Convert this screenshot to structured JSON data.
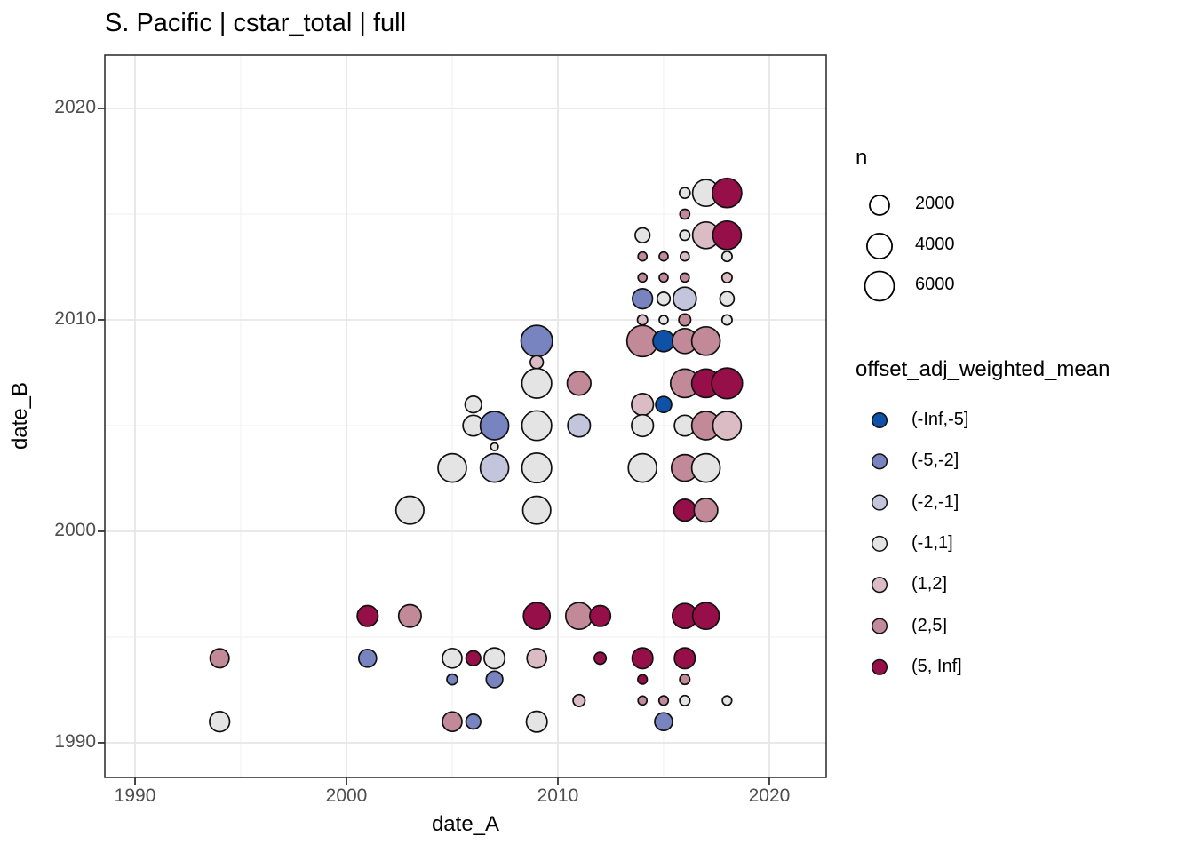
{
  "title": "S. Pacific | cstar_total | full",
  "style": {
    "background": "#ffffff",
    "grid_major": "#e6e6e6",
    "grid_minor": "#f2f2f2",
    "panel_border": "#333333",
    "tick_color": "#333333",
    "tick_label_color": "#4d4d4d",
    "point_stroke": "#111111"
  },
  "legends": {
    "size": {
      "title": "n",
      "items": [
        {
          "label": "2000",
          "n": 2000
        },
        {
          "label": "4000",
          "n": 4000
        },
        {
          "label": "6000",
          "n": 6000
        }
      ]
    },
    "color": {
      "title": "offset_adj_weighted_mean"
    }
  },
  "chart_data": {
    "type": "scatter",
    "title": "S. Pacific | cstar_total | full",
    "xlabel": "date_A",
    "ylabel": "date_B",
    "x_ticks": [
      "1990",
      "2000",
      "2010",
      "2020"
    ],
    "y_ticks": [
      "1990",
      "2000",
      "2010",
      "2020"
    ],
    "x_tick_values": [
      1990,
      2000,
      2010,
      2020
    ],
    "y_tick_values": [
      1990,
      2000,
      2010,
      2020
    ],
    "x_minor": [
      1995,
      2005,
      2015
    ],
    "y_minor": [
      1995,
      2005,
      2015
    ],
    "xlim": [
      1988.57,
      2022.69
    ],
    "ylim": [
      1988.36,
      2022.52
    ],
    "grid": true,
    "legend_position": "right",
    "size_scale": {
      "breaks": [
        2000,
        4000,
        6000
      ],
      "radius_px": [
        11,
        13.8,
        16.5
      ]
    },
    "color_bins": [
      {
        "label": "(-Inf,-5]",
        "color": "#1051a8"
      },
      {
        "label": "(-5,-2]",
        "color": "#7884bf"
      },
      {
        "label": "(-2,-1]",
        "color": "#c3c5dc"
      },
      {
        "label": "(-1,1]",
        "color": "#e5e4e5"
      },
      {
        "label": "(1,2]",
        "color": "#dcbcc4"
      },
      {
        "label": "(2,5]",
        "color": "#c28a98"
      },
      {
        "label": "(5, Inf]",
        "color": "#970f48"
      }
    ],
    "points": [
      {
        "a": 2016,
        "b": 2016,
        "n": 220,
        "bin": "(-1,1]"
      },
      {
        "a": 2017,
        "b": 2016,
        "n": 4700,
        "bin": "(-1,1]"
      },
      {
        "a": 2018,
        "b": 2016,
        "n": 6000,
        "bin": "(5, Inf]"
      },
      {
        "a": 2016,
        "b": 2015,
        "n": 140,
        "bin": "(2,5]"
      },
      {
        "a": 2014,
        "b": 2014,
        "n": 820,
        "bin": "(-1,1]"
      },
      {
        "a": 2016,
        "b": 2014,
        "n": 170,
        "bin": "(-1,1]"
      },
      {
        "a": 2017,
        "b": 2014,
        "n": 4700,
        "bin": "(1,2]"
      },
      {
        "a": 2018,
        "b": 2014,
        "n": 5540,
        "bin": "(5, Inf]"
      },
      {
        "a": 2014,
        "b": 2013,
        "n": 80,
        "bin": "(2,5]"
      },
      {
        "a": 2015,
        "b": 2013,
        "n": 80,
        "bin": "(2,5]"
      },
      {
        "a": 2016,
        "b": 2013,
        "n": 80,
        "bin": "(1,2]"
      },
      {
        "a": 2018,
        "b": 2013,
        "n": 170,
        "bin": "(-1,1]"
      },
      {
        "a": 2014,
        "b": 2012,
        "n": 80,
        "bin": "(2,5]"
      },
      {
        "a": 2015,
        "b": 2012,
        "n": 80,
        "bin": "(2,5]"
      },
      {
        "a": 2016,
        "b": 2012,
        "n": 80,
        "bin": "(2,5]"
      },
      {
        "a": 2018,
        "b": 2012,
        "n": 170,
        "bin": "(1,2]"
      },
      {
        "a": 2014,
        "b": 2011,
        "n": 2160,
        "bin": "(-5,-2]"
      },
      {
        "a": 2015,
        "b": 2011,
        "n": 520,
        "bin": "(-1,1]"
      },
      {
        "a": 2016,
        "b": 2011,
        "n": 3200,
        "bin": "(-2,-1]"
      },
      {
        "a": 2018,
        "b": 2011,
        "n": 720,
        "bin": "(-1,1]"
      },
      {
        "a": 2014,
        "b": 2010,
        "n": 170,
        "bin": "(1,2]"
      },
      {
        "a": 2015,
        "b": 2010,
        "n": 80,
        "bin": "(-1,1]"
      },
      {
        "a": 2016,
        "b": 2010,
        "n": 370,
        "bin": "(2,5]"
      },
      {
        "a": 2018,
        "b": 2010,
        "n": 170,
        "bin": "(-1,1]"
      },
      {
        "a": 2009,
        "b": 2009,
        "n": 7150,
        "bin": "(-5,-2]"
      },
      {
        "a": 2014,
        "b": 2009,
        "n": 7000,
        "bin": "(2,5]"
      },
      {
        "a": 2015,
        "b": 2009,
        "n": 2570,
        "bin": "(-Inf,-5]"
      },
      {
        "a": 2016,
        "b": 2009,
        "n": 3910,
        "bin": "(2,5]"
      },
      {
        "a": 2017,
        "b": 2009,
        "n": 5540,
        "bin": "(2,5]"
      },
      {
        "a": 2009,
        "b": 2008,
        "n": 520,
        "bin": "(1,2]"
      },
      {
        "a": 2009,
        "b": 2007,
        "n": 6190,
        "bin": "(-1,1]"
      },
      {
        "a": 2011,
        "b": 2007,
        "n": 3410,
        "bin": "(2,5]"
      },
      {
        "a": 2016,
        "b": 2007,
        "n": 5540,
        "bin": "(2,5]"
      },
      {
        "a": 2017,
        "b": 2007,
        "n": 5540,
        "bin": "(5, Inf]"
      },
      {
        "a": 2018,
        "b": 2007,
        "n": 6760,
        "bin": "(5, Inf]"
      },
      {
        "a": 2006,
        "b": 2006,
        "n": 1200,
        "bin": "(-1,1]"
      },
      {
        "a": 2014,
        "b": 2006,
        "n": 2750,
        "bin": "(1,2]"
      },
      {
        "a": 2015,
        "b": 2006,
        "n": 1075,
        "bin": "(-Inf,-5]"
      },
      {
        "a": 2006,
        "b": 2005,
        "n": 2390,
        "bin": "(-1,1]"
      },
      {
        "a": 2007,
        "b": 2005,
        "n": 5540,
        "bin": "(-5,-2]"
      },
      {
        "a": 2009,
        "b": 2005,
        "n": 6190,
        "bin": "(-1,1]"
      },
      {
        "a": 2011,
        "b": 2005,
        "n": 3000,
        "bin": "(-2,-1]"
      },
      {
        "a": 2014,
        "b": 2005,
        "n": 2750,
        "bin": "(-1,1]"
      },
      {
        "a": 2016,
        "b": 2005,
        "n": 2390,
        "bin": "(-1,1]"
      },
      {
        "a": 2017,
        "b": 2005,
        "n": 5540,
        "bin": "(2,5]"
      },
      {
        "a": 2018,
        "b": 2005,
        "n": 5540,
        "bin": "(1,2]"
      },
      {
        "a": 2007,
        "b": 2004,
        "n": 25,
        "bin": "(-1,1]"
      },
      {
        "a": 2005,
        "b": 2003,
        "n": 5540,
        "bin": "(-1,1]"
      },
      {
        "a": 2007,
        "b": 2003,
        "n": 5540,
        "bin": "(-2,-1]"
      },
      {
        "a": 2009,
        "b": 2003,
        "n": 6190,
        "bin": "(-1,1]"
      },
      {
        "a": 2014,
        "b": 2003,
        "n": 5540,
        "bin": "(-1,1]"
      },
      {
        "a": 2016,
        "b": 2003,
        "n": 4700,
        "bin": "(2,5]"
      },
      {
        "a": 2017,
        "b": 2003,
        "n": 5540,
        "bin": "(-1,1]"
      },
      {
        "a": 2003,
        "b": 2001,
        "n": 5280,
        "bin": "(-1,1]"
      },
      {
        "a": 2009,
        "b": 2001,
        "n": 5280,
        "bin": "(-1,1]"
      },
      {
        "a": 2016,
        "b": 2001,
        "n": 2750,
        "bin": "(5, Inf]"
      },
      {
        "a": 2017,
        "b": 2001,
        "n": 3410,
        "bin": "(2,5]"
      },
      {
        "a": 2001,
        "b": 1996,
        "n": 2390,
        "bin": "(5, Inf]"
      },
      {
        "a": 2003,
        "b": 1996,
        "n": 3000,
        "bin": "(2,5]"
      },
      {
        "a": 2009,
        "b": 1996,
        "n": 4700,
        "bin": "(5, Inf]"
      },
      {
        "a": 2011,
        "b": 1996,
        "n": 4700,
        "bin": "(2,5]"
      },
      {
        "a": 2012,
        "b": 1996,
        "n": 2390,
        "bin": "(5, Inf]"
      },
      {
        "a": 2016,
        "b": 1996,
        "n": 3910,
        "bin": "(5, Inf]"
      },
      {
        "a": 2017,
        "b": 1996,
        "n": 4700,
        "bin": "(5, Inf]"
      },
      {
        "a": 1994,
        "b": 1994,
        "n": 1840,
        "bin": "(2,5]"
      },
      {
        "a": 2001,
        "b": 1994,
        "n": 1500,
        "bin": "(-5,-2]"
      },
      {
        "a": 2005,
        "b": 1994,
        "n": 2000,
        "bin": "(-1,1]"
      },
      {
        "a": 2006,
        "b": 1994,
        "n": 820,
        "bin": "(5, Inf]"
      },
      {
        "a": 2007,
        "b": 1994,
        "n": 2390,
        "bin": "(-1,1]"
      },
      {
        "a": 2009,
        "b": 1994,
        "n": 2000,
        "bin": "(1,2]"
      },
      {
        "a": 2012,
        "b": 1994,
        "n": 370,
        "bin": "(5, Inf]"
      },
      {
        "a": 2014,
        "b": 1994,
        "n": 2390,
        "bin": "(5, Inf]"
      },
      {
        "a": 2016,
        "b": 1994,
        "n": 2390,
        "bin": "(5, Inf]"
      },
      {
        "a": 2005,
        "b": 1993,
        "n": 220,
        "bin": "(-5,-2]"
      },
      {
        "a": 2007,
        "b": 1993,
        "n": 1200,
        "bin": "(-5,-2]"
      },
      {
        "a": 2014,
        "b": 1993,
        "n": 120,
        "bin": "(5, Inf]"
      },
      {
        "a": 2016,
        "b": 1993,
        "n": 170,
        "bin": "(2,5]"
      },
      {
        "a": 2011,
        "b": 1992,
        "n": 370,
        "bin": "(1,2]"
      },
      {
        "a": 2014,
        "b": 1992,
        "n": 80,
        "bin": "(2,5]"
      },
      {
        "a": 2015,
        "b": 1992,
        "n": 120,
        "bin": "(2,5]"
      },
      {
        "a": 2016,
        "b": 1992,
        "n": 170,
        "bin": "(-1,1]"
      },
      {
        "a": 2018,
        "b": 1992,
        "n": 120,
        "bin": "(-1,1]"
      },
      {
        "a": 1994,
        "b": 1991,
        "n": 2160,
        "bin": "(-1,1]"
      },
      {
        "a": 2005,
        "b": 1991,
        "n": 2000,
        "bin": "(2,5]"
      },
      {
        "a": 2006,
        "b": 1991,
        "n": 820,
        "bin": "(-5,-2]"
      },
      {
        "a": 2009,
        "b": 1991,
        "n": 2390,
        "bin": "(-1,1]"
      },
      {
        "a": 2015,
        "b": 1991,
        "n": 1500,
        "bin": "(-5,-2]"
      }
    ]
  }
}
